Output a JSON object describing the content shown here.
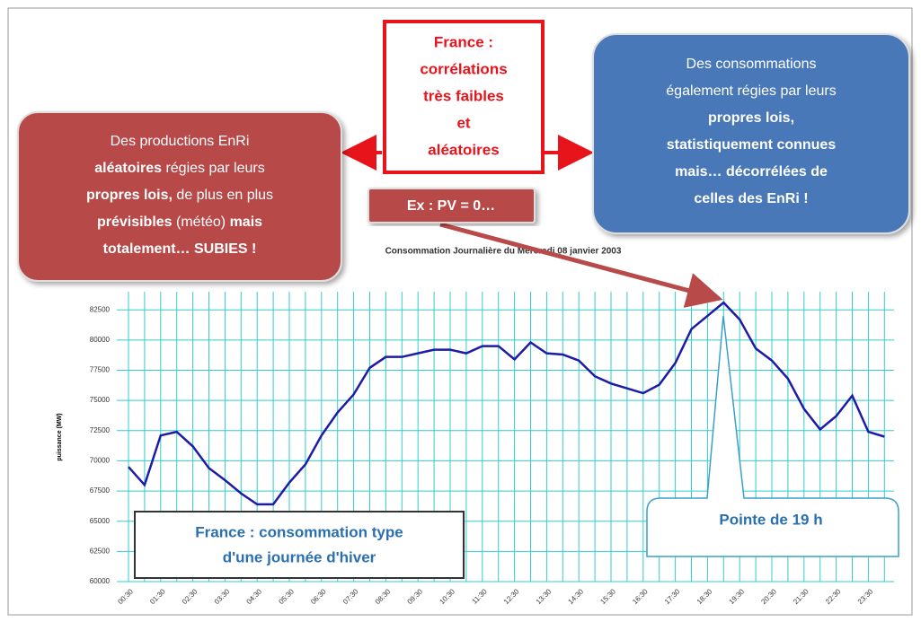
{
  "chart_data": {
    "type": "line",
    "title": "Consommation Journalière du Mercredi 08 janvier 2003",
    "y_label": "puissance (MW)",
    "categories": [
      "00:30",
      null,
      "01:30",
      null,
      "02:30",
      null,
      "03:30",
      null,
      "04:30",
      null,
      "05:30",
      null,
      "06:30",
      null,
      "07:30",
      null,
      "08:30",
      null,
      "09:30",
      null,
      "10:30",
      null,
      "11:30",
      null,
      "12:30",
      null,
      "13:30",
      null,
      "14:30",
      null,
      "15:30",
      null,
      "16:30",
      null,
      "17:30",
      null,
      "18:30",
      null,
      "19:30",
      null,
      "20:30",
      null,
      "21:30",
      null,
      "22:30",
      null,
      "23:30",
      null
    ],
    "series": [
      {
        "name": "Consommation",
        "color": "#1c1ca8",
        "values": [
          69500,
          68000,
          72100,
          72400,
          71200,
          69400,
          68400,
          67300,
          66400,
          66400,
          68200,
          69700,
          72100,
          74000,
          75500,
          77700,
          78600,
          78600,
          78900,
          79200,
          79200,
          78900,
          79500,
          79500,
          78400,
          79800,
          78900,
          78800,
          78300,
          77000,
          76400,
          76000,
          75600,
          76300,
          78100,
          80900,
          82000,
          83100,
          81700,
          79300,
          78300,
          76800,
          74300,
          72600,
          73700,
          75400,
          72400,
          72000
        ]
      }
    ],
    "ylim": [
      60000,
      84000
    ],
    "yticks": [
      60000,
      62500,
      65000,
      67500,
      70000,
      72500,
      75000,
      77500,
      80000,
      82500
    ],
    "grid": true,
    "grid_color": "#33cccc"
  },
  "callouts": {
    "center": [
      "France :",
      "corrélations",
      "très faibles",
      "et",
      "aléatoires"
    ],
    "example": "Ex : PV = 0…",
    "left": [
      [
        {
          "text": "Des productions EnRi",
          "bold": false
        }
      ],
      [
        {
          "text": "aléatoires",
          "bold": true
        },
        {
          "text": " régies par leurs",
          "bold": false
        }
      ],
      [
        {
          "text": "propres lois,",
          "bold": true
        },
        {
          "text": " de plus en plus",
          "bold": false
        }
      ],
      [
        {
          "text": "prévisibles",
          "bold": true
        },
        {
          "text": " (météo) ",
          "bold": false
        },
        {
          "text": "mais",
          "bold": true
        }
      ],
      [
        {
          "text": "totalement… SUBIES !",
          "bold": true
        }
      ]
    ],
    "right": [
      [
        {
          "text": "Des consommations",
          "bold": false
        }
      ],
      [
        {
          "text": "également régies par leurs",
          "bold": false
        }
      ],
      [
        {
          "text": "propres lois,",
          "bold": true
        }
      ],
      [
        {
          "text": "statistiquement connues",
          "bold": true
        }
      ],
      [
        {
          "text": "mais… décorrélées de",
          "bold": true
        }
      ],
      [
        {
          "text": "celles des EnRi !",
          "bold": true
        }
      ]
    ],
    "winter": [
      "France : consommation type",
      "d'une journée d'hiver"
    ],
    "peak": "Pointe de 19 h"
  }
}
